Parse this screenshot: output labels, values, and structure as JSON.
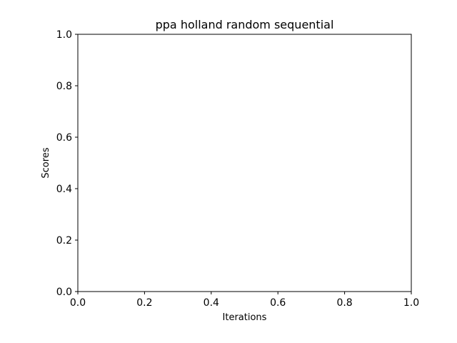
{
  "chart_data": {
    "type": "line",
    "title": "ppa holland random sequential",
    "xlabel": "Iterations",
    "ylabel": "Scores",
    "xlim": [
      0.0,
      1.0
    ],
    "ylim": [
      0.0,
      1.0
    ],
    "xticks": [
      "0.0",
      "0.2",
      "0.4",
      "0.6",
      "0.8",
      "1.0"
    ],
    "yticks": [
      "0.0",
      "0.2",
      "0.4",
      "0.6",
      "0.8",
      "1.0"
    ],
    "series": [],
    "grid": false,
    "legend": "none"
  }
}
